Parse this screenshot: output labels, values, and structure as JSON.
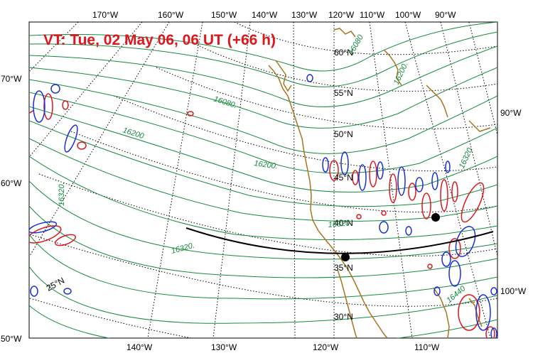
{
  "title": "VT:  Tue, 02 May 06, 06 UT (+66 h)",
  "colors": {
    "title": "#e0161d",
    "height_contour": "#138a3c",
    "coast": "#a8741d",
    "positive_anomaly": "#e0161d",
    "negative_anomaly": "#1a2fd6",
    "graticule": "#000000",
    "track": "#000000"
  },
  "top_lon_labels": [
    "170°W",
    "160°W",
    "150°W",
    "140°W",
    "130°W",
    "120°W",
    "110°W",
    "100°W",
    "90°W"
  ],
  "bottom_lon_labels": [
    "140°W",
    "130°W",
    "120°W",
    "110°W"
  ],
  "left_lon_labels": [
    "70°W",
    "60°W",
    "50°W"
  ],
  "right_lon_labels": [
    "90°W",
    "100°W"
  ],
  "lat_labels": [
    "60°N",
    "55°N",
    "50°N",
    "45°N",
    "40°N",
    "35°N",
    "30°N",
    "25°N"
  ],
  "contour_labels": [
    "16080",
    "16080.",
    "16200",
    "16200.",
    "16200.",
    "16320.",
    "16320.",
    "16320",
    "16440",
    "16320"
  ],
  "track_points": [
    "track-point-1",
    "track-point-2"
  ],
  "icons": {
    "track_point": "filled-circle"
  }
}
